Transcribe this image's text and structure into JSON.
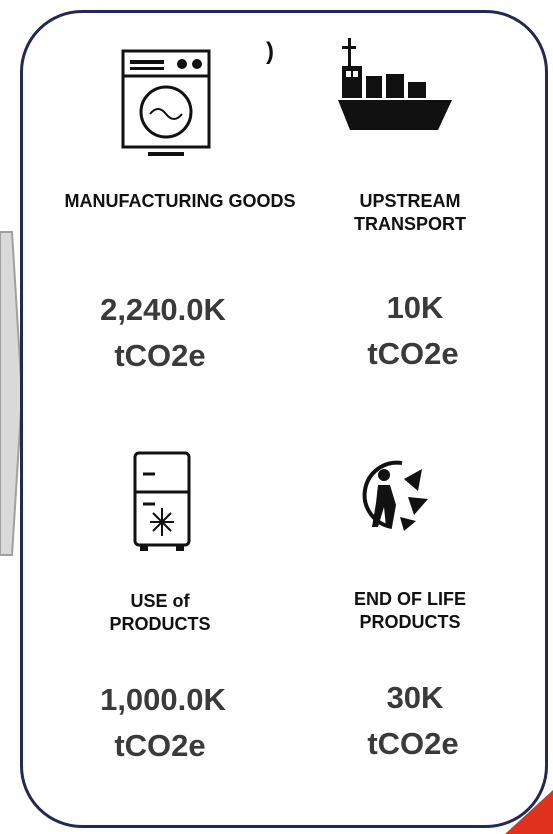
{
  "stray_text": ")",
  "items": [
    {
      "label": "MANUFACTURING GOODS",
      "value": "2,240.0K",
      "unit": "tCO2e"
    },
    {
      "label": "UPSTREAM TRANSPORT",
      "value": "10K",
      "unit": "tCO2e"
    },
    {
      "label": "USE of PRODUCTS",
      "value": "1,000.0K",
      "unit": "tCO2e"
    },
    {
      "label": "END OF LIFE PRODUCTS",
      "value": "30K",
      "unit": "tCO2e"
    }
  ]
}
